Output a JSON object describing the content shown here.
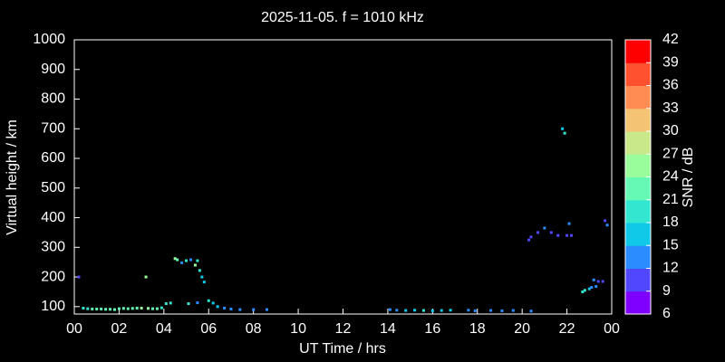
{
  "chart_data": {
    "type": "scatter",
    "title": "2025-11-05. f = 1010 kHz",
    "xlabel": "UT Time / hrs",
    "ylabel": "Virtual height / km",
    "xlim": [
      0,
      24
    ],
    "xticks": [
      {
        "value": 0,
        "label": "00"
      },
      {
        "value": 2,
        "label": "02"
      },
      {
        "value": 4,
        "label": "04"
      },
      {
        "value": 6,
        "label": "06"
      },
      {
        "value": 8,
        "label": "08"
      },
      10,
      12,
      14,
      16,
      18,
      20,
      22,
      {
        "value": 24,
        "label": "00"
      }
    ],
    "ylim": [
      75,
      1000
    ],
    "yticks": [
      100,
      200,
      300,
      400,
      500,
      600,
      700,
      800,
      900,
      1000
    ],
    "colorbar": {
      "label": "SNR / dB",
      "lim": [
        6,
        42
      ],
      "ticks": [
        6,
        9,
        12,
        15,
        18,
        21,
        24,
        27,
        30,
        33,
        36,
        39,
        42
      ],
      "colors": [
        "#8000ff",
        "#5047ff",
        "#2a8cff",
        "#10c8e8",
        "#33e6cf",
        "#66f9b5",
        "#98fd9a",
        "#c9e88a",
        "#f4c373",
        "#ff8c52",
        "#ff5030",
        "#ff0000"
      ]
    },
    "x": [
      0.2,
      0.4,
      0.6,
      0.8,
      1.0,
      1.2,
      1.4,
      1.6,
      1.8,
      2.0,
      2.2,
      2.4,
      2.6,
      2.8,
      3.0,
      3.3,
      3.5,
      3.7,
      3.9,
      3.2,
      4.1,
      4.3,
      4.5,
      4.6,
      4.8,
      5.0,
      5.2,
      5.4,
      5.5,
      5.6,
      5.7,
      5.8,
      5.1,
      5.5,
      6.0,
      6.2,
      6.4,
      6.7,
      7.0,
      7.4,
      8.0,
      8.6,
      14.1,
      14.4,
      14.8,
      15.2,
      15.6,
      16.0,
      16.4,
      16.8,
      17.6,
      17.9,
      18.6,
      19.1,
      19.6,
      20.4,
      20.3,
      20.4,
      20.7,
      21.0,
      21.3,
      21.6,
      22.1,
      22.0,
      22.2,
      21.8,
      21.9,
      22.7,
      22.8,
      23.0,
      23.1,
      23.2,
      23.3,
      23.4,
      23.6,
      23.7,
      23.8
    ],
    "y": [
      200,
      95,
      93,
      92,
      92,
      92,
      91,
      91,
      90,
      93,
      94,
      93,
      94,
      95,
      95,
      94,
      93,
      93,
      96,
      200,
      110,
      112,
      262,
      258,
      248,
      255,
      258,
      240,
      255,
      222,
      200,
      183,
      110,
      113,
      120,
      112,
      100,
      95,
      92,
      90,
      90,
      90,
      90,
      88,
      87,
      88,
      87,
      86,
      87,
      88,
      88,
      86,
      87,
      86,
      87,
      85,
      325,
      335,
      350,
      365,
      350,
      340,
      380,
      340,
      340,
      700,
      685,
      150,
      155,
      160,
      165,
      190,
      168,
      185,
      185,
      390,
      375
    ],
    "snr": [
      10,
      18,
      20,
      21,
      21,
      22,
      21,
      22,
      21,
      22,
      23,
      22,
      22,
      23,
      24,
      24,
      23,
      22,
      20,
      24,
      18,
      19,
      24,
      22,
      14,
      18,
      13,
      24,
      18,
      19,
      17,
      16,
      18,
      14,
      20,
      17,
      15,
      14,
      13,
      13,
      12,
      12,
      13,
      14,
      15,
      16,
      18,
      16,
      17,
      16,
      14,
      13,
      12,
      12,
      13,
      12,
      10,
      11,
      11,
      12,
      11,
      10,
      12,
      11,
      11,
      16,
      18,
      20,
      18,
      16,
      14,
      12,
      13,
      11,
      10,
      11,
      12
    ]
  }
}
